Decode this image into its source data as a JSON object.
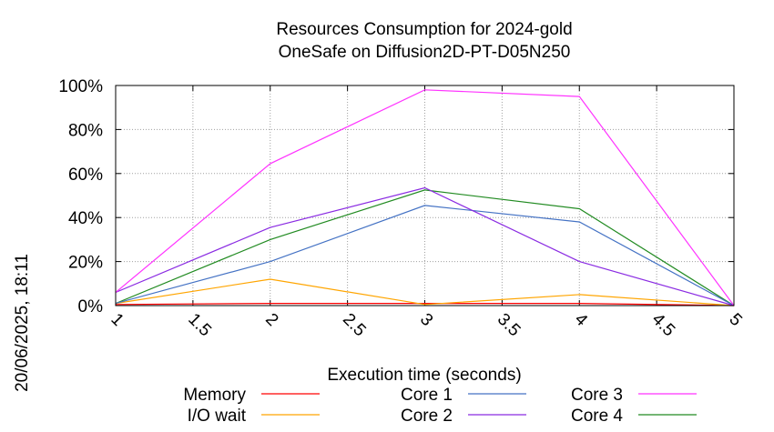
{
  "chart_data": {
    "type": "line",
    "title": "Resources Consumption for 2024-gold",
    "subtitle": "OneSafe on Diffusion2D-PT-D05N250",
    "xlabel": "Execution time (seconds)",
    "ylabel": "",
    "xlim": [
      1,
      5
    ],
    "ylim": [
      0,
      100
    ],
    "x_ticks": [
      "1",
      "1.5",
      "2",
      "2.5",
      "3",
      "3.5",
      "4",
      "4.5",
      "5"
    ],
    "y_ticks": [
      "0%",
      "20%",
      "40%",
      "60%",
      "80%",
      "100%"
    ],
    "grid": true,
    "legend_position": "bottom",
    "x": [
      1,
      2,
      3,
      4,
      5
    ],
    "series": [
      {
        "name": "Memory",
        "color": "#ff0000",
        "values": [
          0.5,
          1,
          1,
          1,
          0
        ]
      },
      {
        "name": "I/O wait",
        "color": "#ffa500",
        "values": [
          1,
          12,
          0.5,
          5,
          0
        ]
      },
      {
        "name": "Core 1",
        "color": "#4472c4",
        "values": [
          1,
          20,
          45.5,
          38,
          0
        ]
      },
      {
        "name": "Core 2",
        "color": "#8a2be2",
        "values": [
          6,
          35.5,
          53.5,
          20,
          0
        ]
      },
      {
        "name": "Core 3",
        "color": "#ff33ff",
        "values": [
          6,
          64.5,
          98,
          95,
          0
        ]
      },
      {
        "name": "Core 4",
        "color": "#228b22",
        "values": [
          1,
          30,
          52.5,
          44,
          0
        ]
      }
    ]
  },
  "timestamp": "20/06/2025, 18:11"
}
